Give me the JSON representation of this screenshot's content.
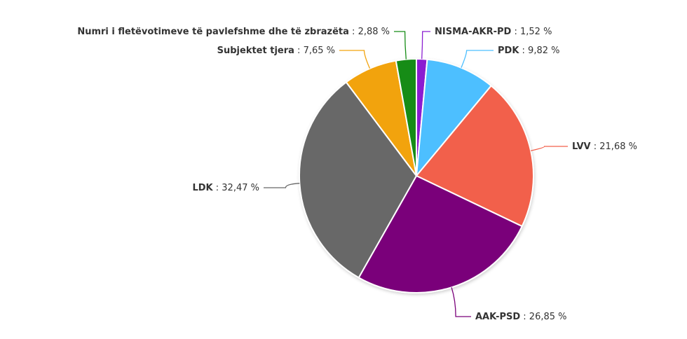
{
  "chart_data": {
    "type": "pie",
    "title": "",
    "slices": [
      {
        "label": "NISMA-AKR-PD",
        "value": 1.52,
        "value_text": "1,52 %",
        "color": "#8b1fd1"
      },
      {
        "label": "PDK",
        "value": 9.82,
        "value_text": "9,82 %",
        "color": "#4dbfff"
      },
      {
        "label": "LVV",
        "value": 21.68,
        "value_text": "21,68 %",
        "color": "#f2604b"
      },
      {
        "label": "AAK-PSD",
        "value": 26.85,
        "value_text": "26,85 %",
        "color": "#7a007a"
      },
      {
        "label": "LDK",
        "value": 32.47,
        "value_text": "32,47 %",
        "color": "#686868"
      },
      {
        "label": "Subjektet tjera",
        "value": 7.65,
        "value_text": "7,65 %",
        "color": "#f2a30f"
      },
      {
        "label": "Numri i fletëvotimeve të pavlefshme dhe të zbrazëta",
        "value": 2.88,
        "value_text": "2,88 %",
        "color": "#168c16"
      }
    ],
    "start": "12 o'clock",
    "direction": "clockwise",
    "legend": "none"
  }
}
